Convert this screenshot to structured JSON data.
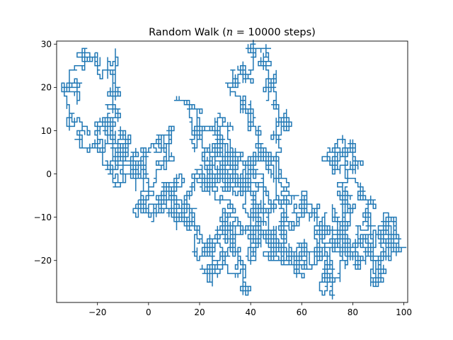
{
  "chart_data": {
    "type": "line",
    "title": {
      "prefix": "Random Walk (",
      "variable": "n",
      "equals": " = 10000 steps)"
    },
    "xlabel": "",
    "ylabel": "",
    "xlim": [
      -36,
      101.5
    ],
    "ylim": [
      -29.7,
      30.7
    ],
    "x_ticks": [
      -20,
      0,
      20,
      40,
      60,
      80,
      100
    ],
    "x_tick_labels": [
      "−20",
      "0",
      "20",
      "40",
      "60",
      "80",
      "100"
    ],
    "y_ticks": [
      -20,
      -10,
      0,
      10,
      20,
      30
    ],
    "y_tick_labels": [
      "−20",
      "−10",
      "0",
      "10",
      "20",
      "30"
    ],
    "grid": false,
    "series_color": "#1f77b4",
    "steps": 10000,
    "waypoints": [
      [
        0,
        0
      ],
      [
        -5,
        2
      ],
      [
        -10,
        4
      ],
      [
        -16,
        1
      ],
      [
        -21,
        6
      ],
      [
        -27,
        9
      ],
      [
        -31,
        14
      ],
      [
        -28,
        20
      ],
      [
        -25,
        26
      ],
      [
        -20,
        27
      ],
      [
        -16,
        24
      ],
      [
        -14,
        18
      ],
      [
        -12,
        13
      ],
      [
        -16,
        10
      ],
      [
        -20,
        12
      ],
      [
        -14,
        7
      ],
      [
        -8,
        8
      ],
      [
        -12,
        4
      ],
      [
        -10,
        -2
      ],
      [
        -5,
        0
      ],
      [
        -2,
        4
      ],
      [
        4,
        6
      ],
      [
        8,
        9
      ],
      [
        6,
        3
      ],
      [
        0,
        -4
      ],
      [
        -4,
        -7
      ],
      [
        0,
        -9
      ],
      [
        4,
        -6
      ],
      [
        10,
        -3
      ],
      [
        14,
        -8
      ],
      [
        18,
        -13
      ],
      [
        22,
        -18
      ],
      [
        25,
        -22
      ],
      [
        30,
        -20
      ],
      [
        34,
        -23
      ],
      [
        37,
        -26
      ],
      [
        35,
        -19
      ],
      [
        32,
        -12
      ],
      [
        28,
        -6
      ],
      [
        24,
        0
      ],
      [
        22,
        5
      ],
      [
        19,
        10
      ],
      [
        17,
        15
      ],
      [
        21,
        10
      ],
      [
        26,
        9
      ],
      [
        30,
        6
      ],
      [
        34,
        4
      ],
      [
        38,
        0
      ],
      [
        42,
        3
      ],
      [
        45,
        -3
      ],
      [
        48,
        -8
      ],
      [
        52,
        -12
      ],
      [
        55,
        -6
      ],
      [
        51,
        -3
      ],
      [
        47,
        2
      ],
      [
        44,
        7
      ],
      [
        40,
        11
      ],
      [
        37,
        16
      ],
      [
        34,
        21
      ],
      [
        38,
        24
      ],
      [
        41,
        28
      ],
      [
        44,
        25
      ],
      [
        46,
        20
      ],
      [
        50,
        16
      ],
      [
        53,
        13
      ],
      [
        49,
        9
      ],
      [
        45,
        5
      ],
      [
        40,
        2
      ],
      [
        36,
        -2
      ],
      [
        31,
        -4
      ],
      [
        27,
        -1
      ],
      [
        25,
        4
      ],
      [
        29,
        8
      ],
      [
        33,
        4
      ],
      [
        37,
        -3
      ],
      [
        42,
        -7
      ],
      [
        46,
        -11
      ],
      [
        50,
        -15
      ],
      [
        54,
        -13
      ],
      [
        58,
        -9
      ],
      [
        62,
        -6
      ],
      [
        66,
        -8
      ],
      [
        69,
        -13
      ],
      [
        72,
        -17
      ],
      [
        70,
        -22
      ],
      [
        67,
        -25
      ],
      [
        72,
        -21
      ],
      [
        75,
        -15
      ],
      [
        78,
        -11
      ],
      [
        76,
        -5
      ],
      [
        73,
        0
      ],
      [
        73,
        3
      ],
      [
        77,
        5
      ],
      [
        80,
        6
      ],
      [
        81,
        1
      ],
      [
        83,
        -5
      ],
      [
        86,
        -9
      ],
      [
        89,
        -13
      ],
      [
        92,
        -10
      ],
      [
        95,
        -15
      ],
      [
        92,
        -19
      ],
      [
        89,
        -24
      ],
      [
        87,
        -20
      ],
      [
        84,
        -16
      ],
      [
        80,
        -18
      ],
      [
        76,
        -14
      ],
      [
        71,
        -11
      ],
      [
        65,
        -14
      ],
      [
        60,
        -17
      ],
      [
        56,
        -20
      ],
      [
        52,
        -18
      ],
      [
        47,
        -15
      ],
      [
        43,
        -13
      ],
      [
        40,
        -17
      ],
      [
        36,
        -13
      ],
      [
        31,
        -9
      ],
      [
        27,
        -13
      ],
      [
        23,
        -16
      ],
      [
        18,
        -12
      ],
      [
        14,
        -8
      ],
      [
        9,
        -10
      ],
      [
        5,
        -7
      ],
      [
        8,
        -3
      ],
      [
        13,
        -1
      ],
      [
        17,
        -4
      ],
      [
        21,
        0
      ],
      [
        25,
        -3
      ],
      [
        29,
        2
      ],
      [
        33,
        -1
      ],
      [
        37,
        -6
      ],
      [
        41,
        -9
      ],
      [
        44,
        -13
      ],
      [
        48,
        -16
      ],
      [
        52,
        -19
      ],
      [
        57,
        -21
      ],
      [
        62,
        -17
      ],
      [
        67,
        -19
      ],
      [
        72,
        -16
      ],
      [
        77,
        -19
      ],
      [
        82,
        -21
      ],
      [
        86,
        -18
      ],
      [
        90,
        -14
      ],
      [
        94,
        -16
      ],
      [
        96,
        -15
      ]
    ]
  }
}
